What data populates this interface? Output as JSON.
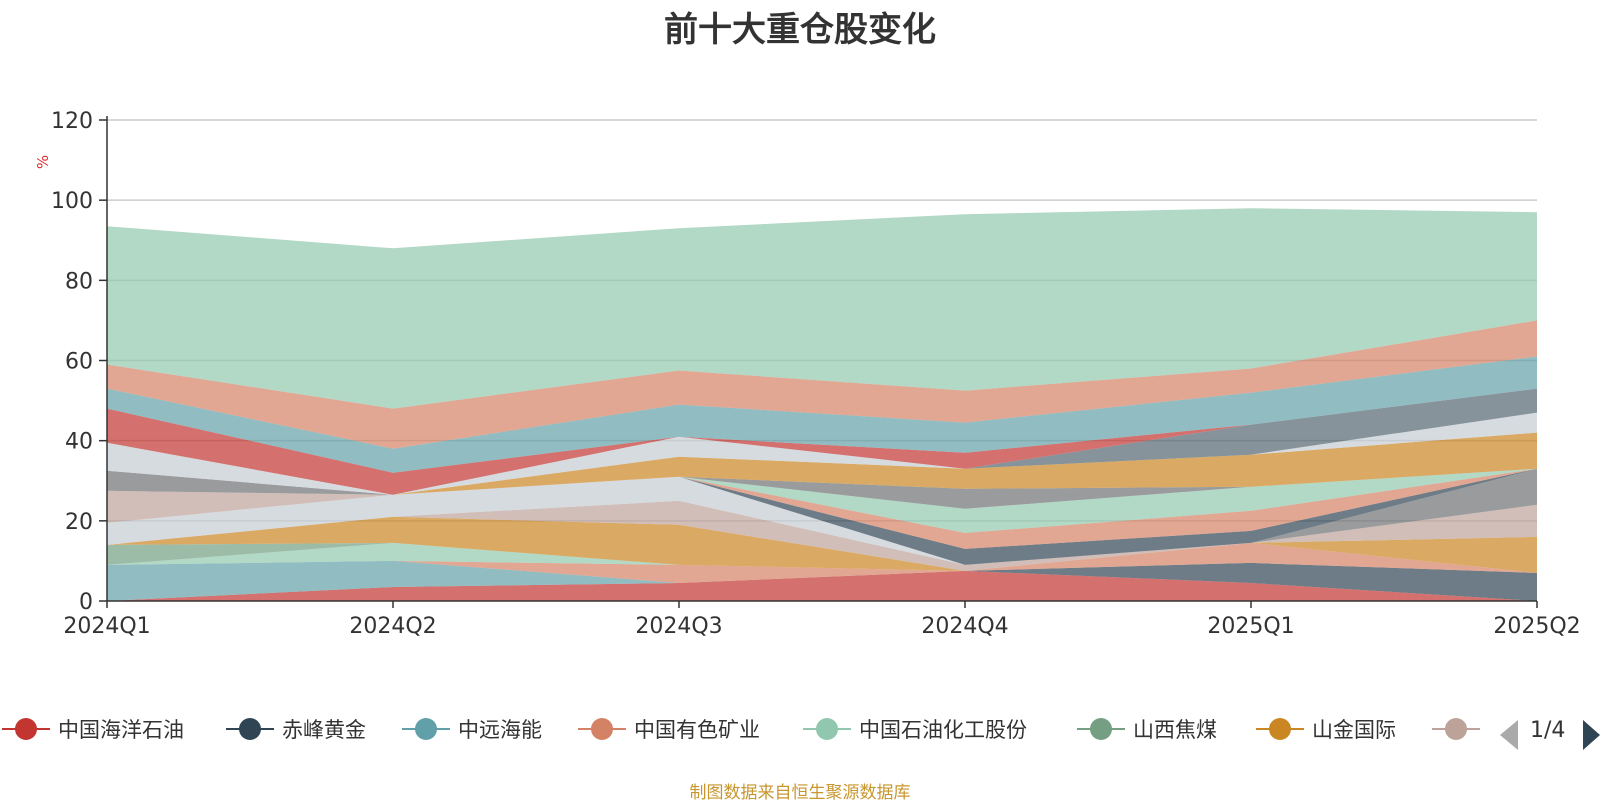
{
  "chart_data": {
    "type": "area",
    "stacked": true,
    "title": "前十大重仓股变化",
    "ylabel": "%",
    "ylim": [
      0,
      120
    ],
    "yticks": [
      0,
      20,
      40,
      60,
      80,
      100,
      120
    ],
    "grid": true,
    "legend_position": "bottom",
    "categories": [
      "2024Q1",
      "2024Q2",
      "2024Q3",
      "2024Q4",
      "2025Q1",
      "2025Q2"
    ],
    "series": [
      {
        "name": "中国海洋石油",
        "color": "#c23531",
        "values": [
          0,
          3.5,
          4.5,
          7.5,
          4.5,
          0
        ]
      },
      {
        "name": "赤峰黄金",
        "color": "#2f4554",
        "values": [
          0,
          0,
          0,
          0,
          5,
          7
        ]
      },
      {
        "name": "中远海能",
        "color": "#61a0a8",
        "values": [
          9,
          6.5,
          0,
          0,
          0,
          0
        ]
      },
      {
        "name": "中国有色矿业",
        "color": "#d48265",
        "values": [
          0,
          0,
          4.5,
          0,
          5,
          0
        ]
      },
      {
        "name": "中国石油化工股份",
        "color": "#91c7ae",
        "values": [
          0,
          4.5,
          0,
          0,
          0,
          0
        ]
      },
      {
        "name": "山西焦煤",
        "color": "#749f83",
        "values": [
          5,
          0,
          0,
          0,
          0,
          0
        ]
      },
      {
        "name": "山金国际",
        "color": "#ca8622",
        "values": [
          0,
          6.5,
          10,
          0,
          0,
          9
        ]
      },
      {
        "name": "",
        "color": "#bda29a",
        "values": [
          0,
          0,
          6,
          1.5,
          0,
          8
        ]
      },
      {
        "name": "",
        "color": "#6e7074",
        "values": [
          0,
          0,
          0,
          0,
          0,
          9
        ]
      },
      {
        "name": "",
        "color": "#2f4554",
        "values": [
          0,
          0,
          0,
          0,
          0,
          0
        ]
      },
      {
        "name": "",
        "color": "#546570",
        "values": [
          0,
          0,
          0,
          0,
          0,
          0
        ]
      },
      {
        "name": "",
        "color": "#c4ccd3",
        "values": [
          5.5,
          5.5,
          6,
          0,
          0,
          0
        ]
      },
      {
        "name": "",
        "color": "#2f4554",
        "values": [
          0,
          0,
          0,
          4,
          3,
          0
        ]
      },
      {
        "name": "",
        "color": "#ca8622",
        "values": [
          0,
          0,
          0,
          0,
          0,
          0
        ]
      },
      {
        "name": "",
        "color": "#d48265",
        "values": [
          0,
          0,
          0,
          4,
          5,
          0
        ]
      },
      {
        "name": "",
        "color": "#91c7ae",
        "values": [
          0,
          0,
          0,
          6,
          6,
          0
        ]
      },
      {
        "name": "",
        "color": "#bda29a",
        "values": [
          8,
          0,
          0,
          0,
          0,
          0
        ]
      },
      {
        "name": "",
        "color": "#6e7074",
        "values": [
          5,
          0,
          0,
          5,
          0,
          0
        ]
      },
      {
        "name": "",
        "color": "#ca8622",
        "values": [
          0,
          0,
          5,
          5,
          8,
          9
        ]
      },
      {
        "name": "",
        "color": "#c4ccd3",
        "values": [
          7,
          0,
          5,
          0,
          0,
          5
        ]
      },
      {
        "name": "",
        "color": "#546570",
        "values": [
          0,
          0,
          0,
          0,
          7.5,
          6
        ]
      },
      {
        "name": "",
        "color": "#c23531",
        "values": [
          8.5,
          5.5,
          0,
          4,
          0,
          0
        ]
      },
      {
        "name": "",
        "color": "#61a0a8",
        "values": [
          5,
          6,
          8,
          7.5,
          8,
          8
        ]
      },
      {
        "name": "",
        "color": "#d48265",
        "values": [
          6,
          10,
          8.5,
          8,
          6,
          9
        ]
      },
      {
        "name": "",
        "color": "#91c7ae",
        "values": [
          34.5,
          40,
          35.5,
          44,
          40,
          27
        ]
      }
    ]
  },
  "legend": {
    "page_indicator": "1/4",
    "items": [
      {
        "label": "中国海洋石油",
        "color": "#c23531"
      },
      {
        "label": "赤峰黄金",
        "color": "#2f4554"
      },
      {
        "label": "中远海能",
        "color": "#61a0a8"
      },
      {
        "label": "中国有色矿业",
        "color": "#d48265"
      },
      {
        "label": "中国石油化工股份",
        "color": "#91c7ae"
      },
      {
        "label": "山西焦煤",
        "color": "#749f83"
      },
      {
        "label": "山金国际",
        "color": "#ca8622"
      },
      {
        "label": "",
        "color": "#bda29a"
      }
    ]
  },
  "source_note": "制图数据来自恒生聚源数据库"
}
